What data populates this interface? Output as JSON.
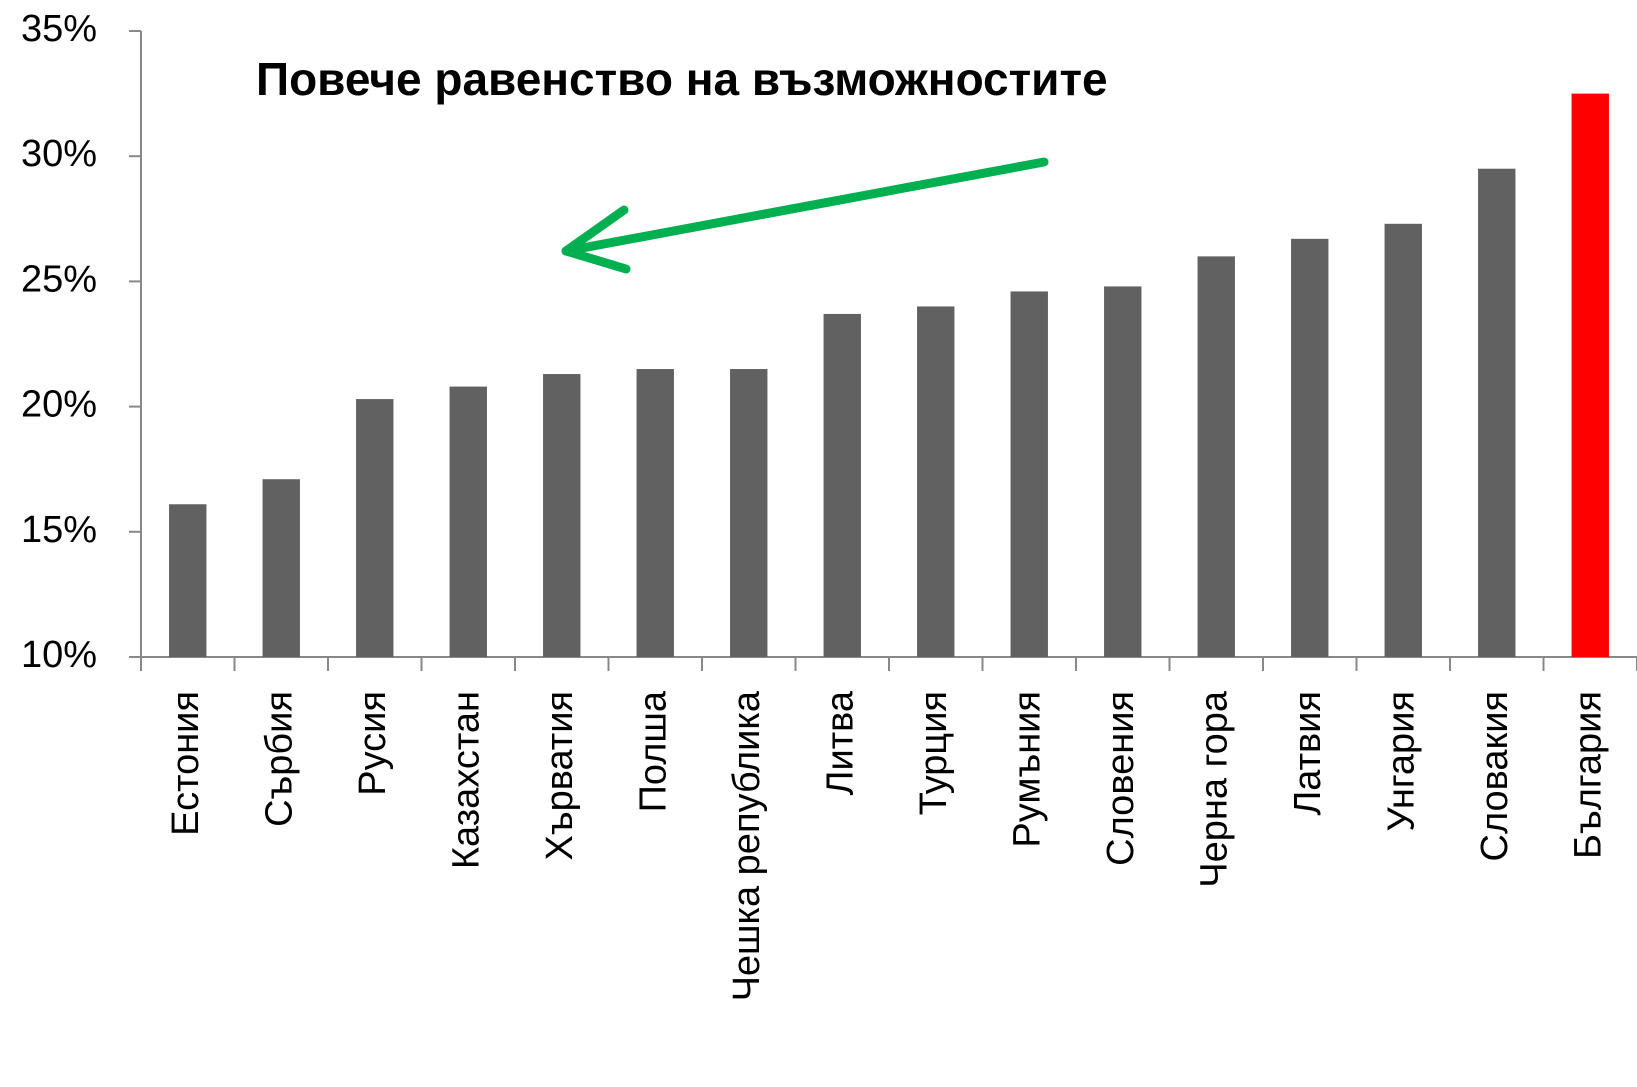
{
  "chart_data": {
    "type": "bar",
    "annotation": "Повече равенство на възможностите",
    "categories": [
      "Естония",
      "Сърбия",
      "Русия",
      "Казахстан",
      "Хърватия",
      "Полша",
      "Чешка република",
      "Литва",
      "Турция",
      "Румъния",
      "Словения",
      "Черна гора",
      "Латвия",
      "Унгария",
      "Словакия",
      "България"
    ],
    "values": [
      16.1,
      17.1,
      20.3,
      20.8,
      21.3,
      21.5,
      21.5,
      23.7,
      24.0,
      24.6,
      24.8,
      26.0,
      26.7,
      27.3,
      29.5,
      32.5
    ],
    "colors": [
      "#616161",
      "#616161",
      "#616161",
      "#616161",
      "#616161",
      "#616161",
      "#616161",
      "#616161",
      "#616161",
      "#616161",
      "#616161",
      "#616161",
      "#616161",
      "#616161",
      "#616161",
      "#ff0000"
    ],
    "annotation_color": "#00b050",
    "ylim": [
      10,
      35
    ],
    "yticks": [
      {
        "value": 10,
        "label": "10%"
      },
      {
        "value": 15,
        "label": "15%"
      },
      {
        "value": 20,
        "label": "20%"
      },
      {
        "value": 25,
        "label": "25%"
      },
      {
        "value": 30,
        "label": "30%"
      },
      {
        "value": 35,
        "label": "35%"
      }
    ],
    "grid": false
  }
}
